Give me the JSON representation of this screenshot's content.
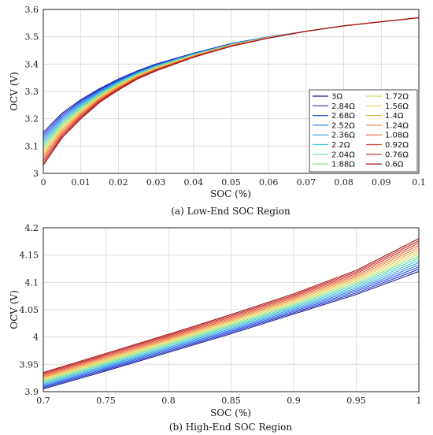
{
  "colors": {
    "series": [
      "#1a1a8c",
      "#2233cc",
      "#2255ee",
      "#2f7fe8",
      "#3aa6e0",
      "#45c7d6",
      "#5fd9b4",
      "#8ee08a",
      "#c4e46a",
      "#e6d35a",
      "#f0b24e",
      "#f08c44",
      "#e8663a",
      "#d84030",
      "#c02020",
      "#a01818"
    ],
    "grid": "#d9d9d9",
    "axis": "#222222"
  },
  "chart_data": [
    {
      "type": "line",
      "caption": "(a) Low-End SOC Region",
      "xlabel": "SOC (%)",
      "ylabel": "OCV (V)",
      "xlim": [
        0,
        0.1
      ],
      "ylim": [
        3.0,
        3.6
      ],
      "xticks": [
        "0",
        "0.01",
        "0.02",
        "0.03",
        "0.04",
        "0.05",
        "0.06",
        "0.07",
        "0.08",
        "0.09",
        "0.1"
      ],
      "yticks": [
        "3",
        "3.1",
        "3.2",
        "3.3",
        "3.4",
        "3.5",
        "3.6"
      ],
      "grid": true,
      "legend": {
        "position": "right",
        "labels": [
          "3Ω",
          "2.84Ω",
          "2.68Ω",
          "2.52Ω",
          "2.36Ω",
          "2.2Ω",
          "2.04Ω",
          "1.88Ω",
          "1.72Ω",
          "1.56Ω",
          "1.4Ω",
          "1.24Ω",
          "1.08Ω",
          "0.92Ω",
          "0.76Ω",
          "0.6Ω"
        ]
      },
      "x": [
        0,
        0.005,
        0.01,
        0.015,
        0.02,
        0.025,
        0.03,
        0.04,
        0.05,
        0.06,
        0.07,
        0.08,
        0.09,
        0.1
      ],
      "series_first": [
        3.15,
        3.22,
        3.27,
        3.31,
        3.345,
        3.375,
        3.4,
        3.44,
        3.475,
        3.5,
        3.52,
        3.54,
        3.555,
        3.57
      ],
      "series_last": [
        3.03,
        3.13,
        3.2,
        3.26,
        3.305,
        3.345,
        3.375,
        3.425,
        3.465,
        3.495,
        3.52,
        3.54,
        3.555,
        3.57
      ]
    },
    {
      "type": "line",
      "caption": "(b) High-End SOC Region",
      "xlabel": "SOC (%)",
      "ylabel": "OCV (V)",
      "xlim": [
        0.7,
        1.0
      ],
      "ylim": [
        3.9,
        4.2
      ],
      "xticks": [
        "0.7",
        "0.75",
        "0.8",
        "0.85",
        "0.9",
        "0.95",
        "1"
      ],
      "yticks": [
        "3.9",
        "3.95",
        "4",
        "4.05",
        "4.1",
        "4.15",
        "4.2"
      ],
      "grid": true,
      "x": [
        0.7,
        0.75,
        0.8,
        0.85,
        0.9,
        0.95,
        1.0
      ],
      "series_first": [
        3.905,
        3.938,
        3.972,
        4.006,
        4.042,
        4.078,
        4.12
      ],
      "series_last": [
        3.935,
        3.97,
        4.005,
        4.041,
        4.079,
        4.122,
        4.18
      ]
    }
  ]
}
